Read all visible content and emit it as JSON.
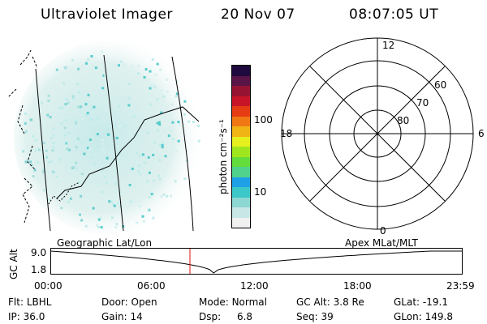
{
  "header": {
    "title": "Ultraviolet Imager",
    "date": "20 Nov 07",
    "time": "08:07:05 UT"
  },
  "colorbar": {
    "label": "photon cm⁻²s⁻¹",
    "ticks": [
      "100",
      "10"
    ],
    "colors": [
      "#f0f0f0",
      "#c8e6e6",
      "#8cd7d2",
      "#3cc8c8",
      "#1ea0e6",
      "#50d28c",
      "#64dc3c",
      "#a0e61e",
      "#e6f01e",
      "#f0b414",
      "#f07814",
      "#e63c14",
      "#c81428",
      "#961432",
      "#5a1446",
      "#1e0a3c"
    ]
  },
  "polar": {
    "clock_labels": [
      "12",
      "18",
      "6",
      "0"
    ],
    "lat_labels": [
      "60",
      "70",
      "80"
    ]
  },
  "timeline": {
    "ylabel": "GC Alt",
    "yticks": [
      "9.0",
      "1.8"
    ],
    "left_caption": "Geographic Lat/Lon",
    "right_caption": "Apex  MLat/MLT",
    "xticks": [
      "00:00",
      "06:00",
      "12:00",
      "18:00",
      "23:59"
    ],
    "marker_time_hours": 8.118,
    "colors": {
      "marker": "#e01010",
      "curve": "#000000"
    }
  },
  "info": {
    "row1": [
      {
        "key": "Flt:",
        "value": "LBHL"
      },
      {
        "key": "Door:",
        "value": "Open"
      },
      {
        "key": "Mode:",
        "value": "Normal"
      },
      {
        "key": "GC Alt:",
        "value": "3.8 Re"
      },
      {
        "key": "GLat:",
        "value": "-19.1"
      }
    ],
    "row2": [
      {
        "key": "IP:",
        "value": "36.0"
      },
      {
        "key": "Gain:",
        "value": "14"
      },
      {
        "key": "Dsp:",
        "value": "6.8"
      },
      {
        "key": "Seq:",
        "value": "39"
      },
      {
        "key": "GLon:",
        "value": "149.8"
      }
    ]
  }
}
